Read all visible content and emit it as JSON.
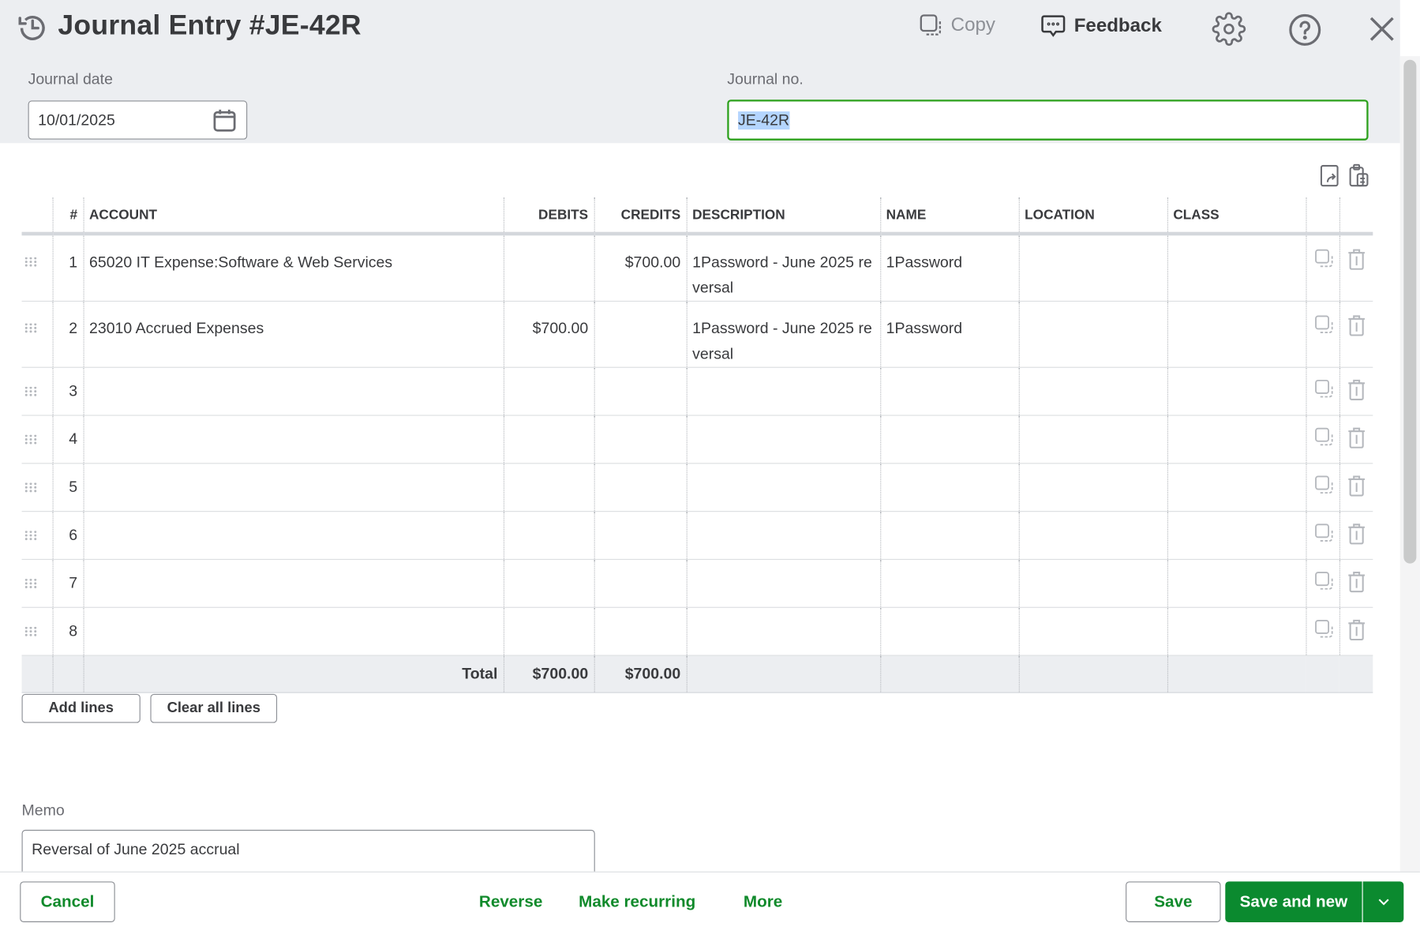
{
  "header": {
    "title": "Journal Entry #JE-42R",
    "copy_label": "Copy",
    "feedback_label": "Feedback"
  },
  "form": {
    "journal_date_label": "Journal date",
    "journal_date_value": "10/01/2025",
    "journal_no_label": "Journal no.",
    "journal_no_value": "JE-42R"
  },
  "table": {
    "columns": [
      "#",
      "ACCOUNT",
      "DEBITS",
      "CREDITS",
      "DESCRIPTION",
      "NAME",
      "LOCATION",
      "CLASS"
    ],
    "rows": [
      {
        "num": "1",
        "account": "65020 IT Expense:Software & Web Services",
        "debits": "",
        "credits": "$700.00",
        "description": "1Password - June 2025 reversal",
        "name": "1Password",
        "location": "",
        "class": ""
      },
      {
        "num": "2",
        "account": "23010 Accrued Expenses",
        "debits": "$700.00",
        "credits": "",
        "description": "1Password - June 2025 reversal",
        "name": "1Password",
        "location": "",
        "class": ""
      },
      {
        "num": "3",
        "account": "",
        "debits": "",
        "credits": "",
        "description": "",
        "name": "",
        "location": "",
        "class": ""
      },
      {
        "num": "4",
        "account": "",
        "debits": "",
        "credits": "",
        "description": "",
        "name": "",
        "location": "",
        "class": ""
      },
      {
        "num": "5",
        "account": "",
        "debits": "",
        "credits": "",
        "description": "",
        "name": "",
        "location": "",
        "class": ""
      },
      {
        "num": "6",
        "account": "",
        "debits": "",
        "credits": "",
        "description": "",
        "name": "",
        "location": "",
        "class": ""
      },
      {
        "num": "7",
        "account": "",
        "debits": "",
        "credits": "",
        "description": "",
        "name": "",
        "location": "",
        "class": ""
      },
      {
        "num": "8",
        "account": "",
        "debits": "",
        "credits": "",
        "description": "",
        "name": "",
        "location": "",
        "class": ""
      }
    ],
    "total_label": "Total",
    "total_debits": "$700.00",
    "total_credits": "$700.00"
  },
  "actions": {
    "add_lines": "Add lines",
    "clear_all_lines": "Clear all lines"
  },
  "memo": {
    "label": "Memo",
    "value": "Reversal of June 2025 accrual"
  },
  "footer": {
    "cancel": "Cancel",
    "reverse": "Reverse",
    "make_recurring": "Make recurring",
    "more": "More",
    "save": "Save",
    "save_and_new": "Save and new"
  },
  "colors": {
    "accent": "#0b8a2f",
    "focus_border": "#2ca01c",
    "selection": "#b4d5fe"
  }
}
